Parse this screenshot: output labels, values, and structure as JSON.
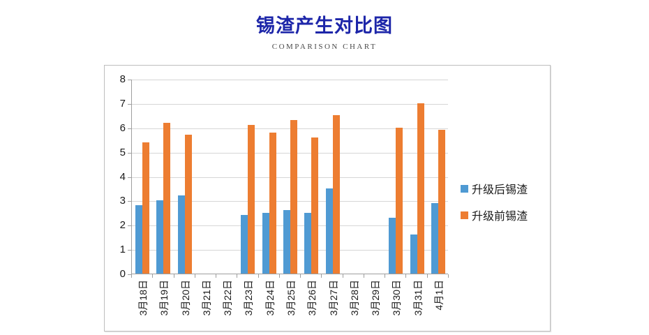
{
  "page": {
    "title": "锡渣产生对比图",
    "subtitle": "COMPARISON CHART"
  },
  "colors": {
    "title_text": "#1d26a9",
    "subtitle_text": "#4a4a4a",
    "after_upgrade_blue": "#4f9ad3",
    "before_upgrade_orange": "#ed7d31",
    "gridline": "#d6d6d6",
    "axis": "#9e9e9e",
    "chart_border": "#bdbdbd",
    "label_text": "#1a1a1a"
  },
  "chart_data": {
    "type": "bar",
    "title": "锡渣产生对比图",
    "subtitle": "COMPARISON CHART",
    "categories": [
      "3月18日",
      "3月19日",
      "3月20日",
      "3月21日",
      "3月22日",
      "3月23日",
      "3月24日",
      "3月25日",
      "3月26日",
      "3月27日",
      "3月28日",
      "3月29日",
      "3月30日",
      "3月31日",
      "4月1日"
    ],
    "series": [
      {
        "name": "升级后锡渣",
        "color": "#4f9ad3",
        "values": [
          2.8,
          3.0,
          3.2,
          0,
          0,
          2.4,
          2.5,
          2.6,
          2.5,
          3.5,
          0,
          0,
          2.3,
          1.6,
          2.9
        ]
      },
      {
        "name": "升级前锡渣",
        "color": "#ed7d31",
        "values": [
          5.4,
          6.2,
          5.7,
          0,
          0,
          6.1,
          5.8,
          6.3,
          5.6,
          6.5,
          0,
          0,
          6.0,
          7.0,
          5.9
        ]
      }
    ],
    "xlabel": "",
    "ylabel": "",
    "ylim": [
      0,
      8
    ],
    "ytick_step": 1,
    "grid": true,
    "legend_position": "right"
  }
}
